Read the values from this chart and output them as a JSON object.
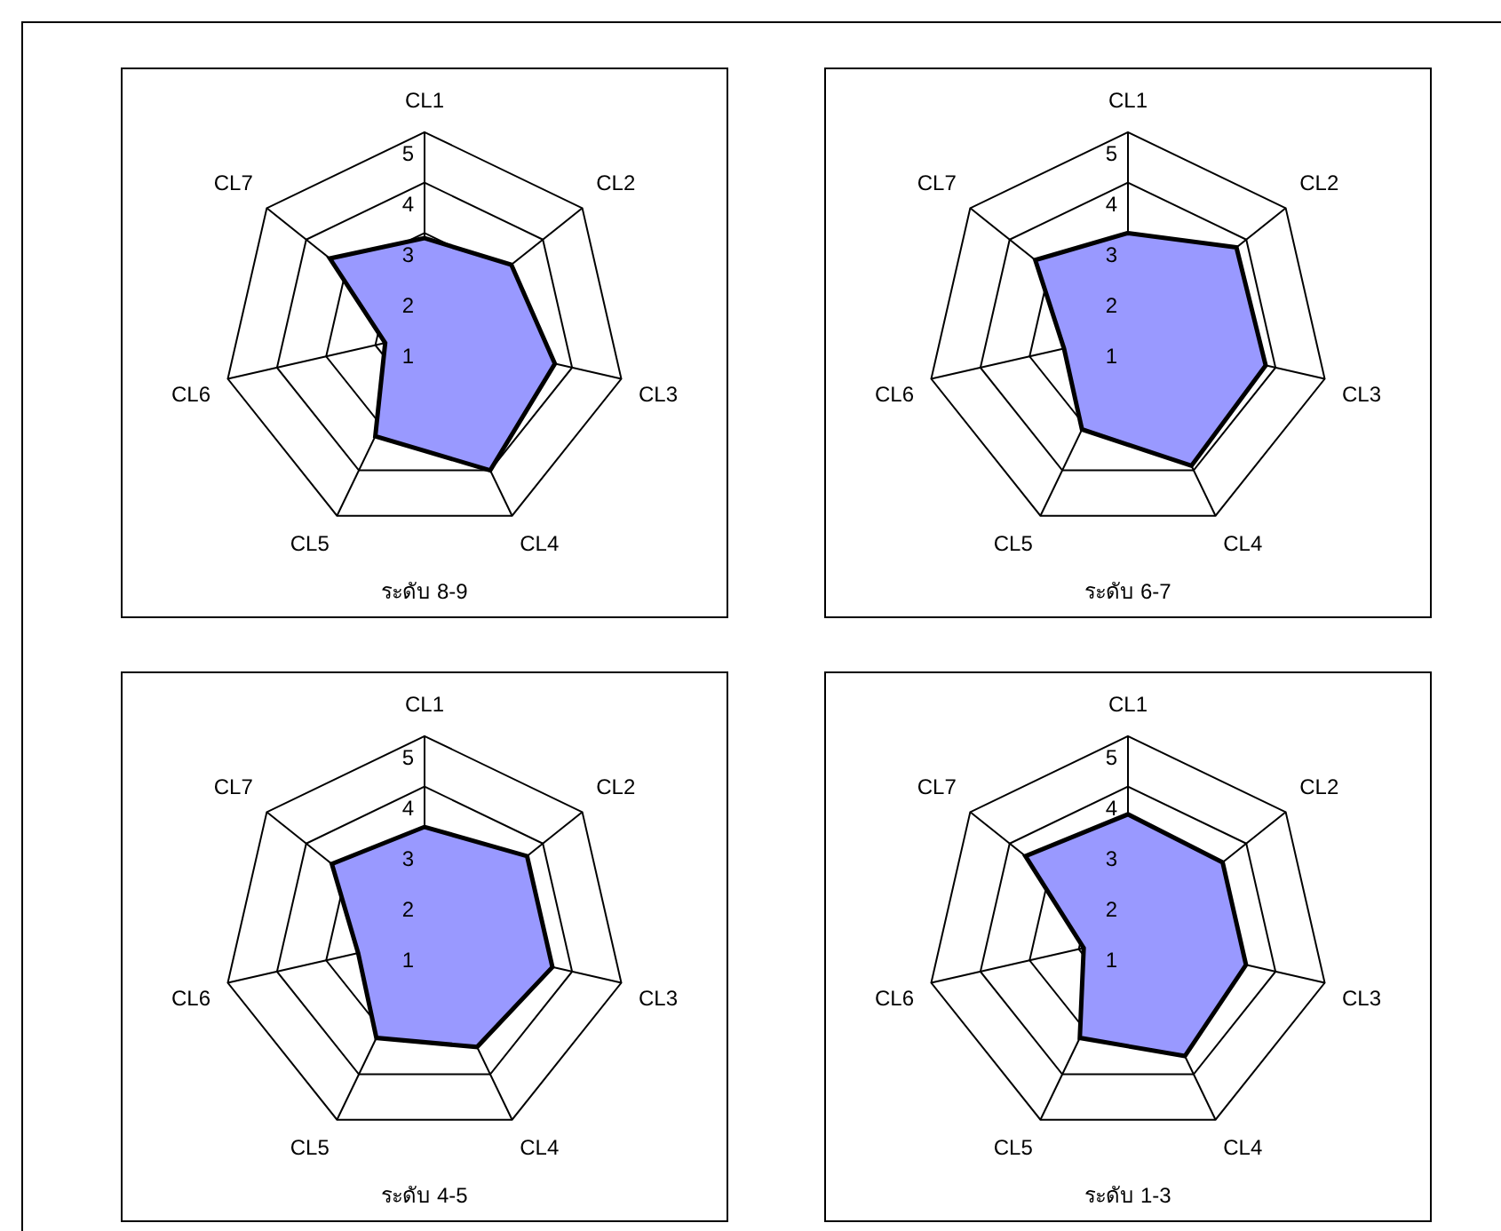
{
  "chart_data": [
    {
      "type": "radar",
      "title": "ระดับ 8-9",
      "categories": [
        "CL1",
        "CL2",
        "CL3",
        "CL4",
        "CL5",
        "CL6",
        "CL7"
      ],
      "series": [
        {
          "color": "#9999ff",
          "values": [
            2.9,
            3.2,
            3.65,
            4.0,
            3.25,
            1.8,
            3.4
          ]
        }
      ],
      "ylim": [
        1,
        5
      ],
      "yticks": [
        1,
        2,
        3,
        4,
        5
      ],
      "grid": true,
      "legend": false
    },
    {
      "type": "radar",
      "title": "ระดับ 6-7",
      "categories": [
        "CL1",
        "CL2",
        "CL3",
        "CL4",
        "CL5",
        "CL6",
        "CL7"
      ],
      "series": [
        {
          "color": "#9999ff",
          "values": [
            3.0,
            3.75,
            3.8,
            3.9,
            3.1,
            2.3,
            3.35
          ]
        }
      ],
      "ylim": [
        1,
        5
      ],
      "yticks": [
        1,
        2,
        3,
        4,
        5
      ],
      "grid": true,
      "legend": false
    },
    {
      "type": "radar",
      "title": "ระดับ 4-5",
      "categories": [
        "CL1",
        "CL2",
        "CL3",
        "CL4",
        "CL5",
        "CL6",
        "CL7"
      ],
      "series": [
        {
          "color": "#9999ff",
          "values": [
            3.2,
            3.6,
            3.6,
            3.4,
            3.2,
            2.35,
            3.35
          ]
        }
      ],
      "ylim": [
        1,
        5
      ],
      "yticks": [
        1,
        2,
        3,
        4,
        5
      ],
      "grid": true,
      "legend": false
    },
    {
      "type": "radar",
      "title": "ระดับ 1-3",
      "categories": [
        "CL1",
        "CL2",
        "CL3",
        "CL4",
        "CL5",
        "CL6",
        "CL7"
      ],
      "series": [
        {
          "color": "#9999ff",
          "values": [
            3.45,
            3.4,
            3.4,
            3.6,
            3.2,
            1.9,
            3.6
          ]
        }
      ],
      "ylim": [
        1,
        5
      ],
      "yticks": [
        1,
        2,
        3,
        4,
        5
      ],
      "grid": true,
      "legend": false
    }
  ]
}
